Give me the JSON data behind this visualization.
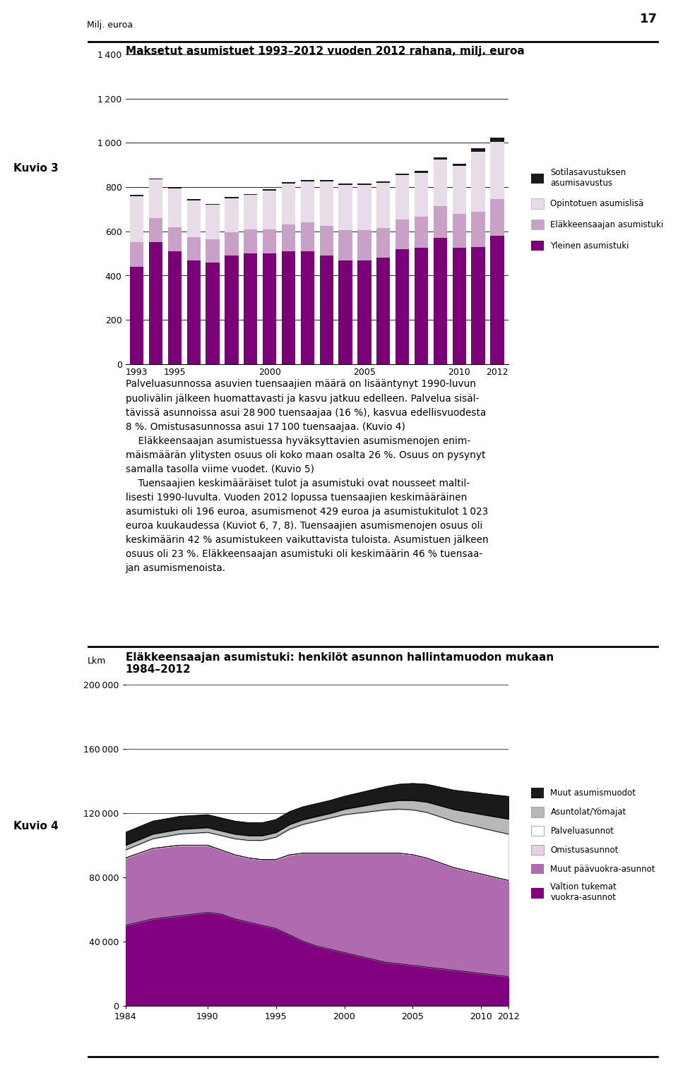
{
  "chart1": {
    "title": "Maksetut asumistuet 1993–2012 vuoden 2012 rahana, milj. euroa",
    "ylabel": "Milj. euroa",
    "years": [
      1993,
      1994,
      1995,
      1996,
      1997,
      1998,
      1999,
      2000,
      2001,
      2002,
      2003,
      2004,
      2005,
      2006,
      2007,
      2008,
      2009,
      2010,
      2011,
      2012
    ],
    "yleinen": [
      440,
      550,
      510,
      470,
      460,
      490,
      500,
      500,
      510,
      510,
      490,
      470,
      470,
      480,
      520,
      525,
      570,
      525,
      530,
      580
    ],
    "elakkeensaajan": [
      110,
      110,
      110,
      105,
      105,
      105,
      110,
      110,
      120,
      130,
      135,
      135,
      135,
      135,
      135,
      140,
      145,
      155,
      160,
      165
    ],
    "opintotuen": [
      210,
      175,
      175,
      165,
      155,
      155,
      155,
      175,
      185,
      185,
      200,
      205,
      205,
      205,
      200,
      200,
      210,
      215,
      270,
      260
    ],
    "sotilasavustuksen": [
      5,
      5,
      5,
      5,
      5,
      5,
      5,
      5,
      7,
      7,
      7,
      7,
      7,
      7,
      7,
      8,
      10,
      10,
      15,
      20
    ],
    "colors": {
      "yleinen": "#7b0077",
      "elakkeensaajan": "#c8a0c8",
      "opintotuen": "#e8dce8",
      "sotilasavustuksen": "#1a1a1a"
    },
    "legend": {
      "sotilasavustuksen": "Sotilasavustuksen\nasumisavustus",
      "opintotuen": "Opintotuen asumislisä",
      "elakkeensaajan": "Eläkkeensaajan asumistuki",
      "yleinen": "Yleinen asumistuki"
    },
    "ylim": [
      0,
      1400
    ],
    "yticks": [
      0,
      200,
      400,
      600,
      800,
      1000,
      1200,
      1400
    ]
  },
  "chart2": {
    "title": "Eläkkeensaajan asumistuki: henkilöt asunnon hallintamuodon mukaan\n1984–2012",
    "ylabel": "Lkm",
    "years": [
      1984,
      1985,
      1986,
      1987,
      1988,
      1989,
      1990,
      1991,
      1992,
      1993,
      1994,
      1995,
      1996,
      1997,
      1998,
      1999,
      2000,
      2001,
      2002,
      2003,
      2004,
      2005,
      2006,
      2007,
      2008,
      2009,
      2010,
      2011,
      2012
    ],
    "valtion_tukemat": [
      50000,
      52000,
      54000,
      55000,
      56000,
      57000,
      58000,
      57000,
      54000,
      52000,
      50000,
      48000,
      44000,
      40000,
      37000,
      35000,
      33000,
      31000,
      29000,
      27000,
      26000,
      25000,
      24000,
      23000,
      22000,
      21000,
      20000,
      19000,
      18000
    ],
    "muut_paavuokra": [
      42000,
      43000,
      44000,
      44000,
      44000,
      43000,
      42000,
      40000,
      40000,
      40000,
      41000,
      43000,
      50000,
      55000,
      58000,
      60000,
      62000,
      64000,
      66000,
      68000,
      69000,
      69000,
      68000,
      66000,
      64000,
      63000,
      62000,
      61000,
      60000
    ],
    "omistusasunnot": [
      0,
      0,
      0,
      0,
      0,
      0,
      0,
      0,
      0,
      0,
      0,
      0,
      0,
      0,
      0,
      0,
      0,
      0,
      0,
      0,
      0,
      0,
      0,
      0,
      0,
      0,
      0,
      0,
      0
    ],
    "palveluasunnot": [
      5000,
      5500,
      6000,
      6500,
      7000,
      7500,
      8000,
      9000,
      10000,
      11000,
      12000,
      14000,
      16000,
      18000,
      20000,
      22000,
      24000,
      25000,
      26000,
      27000,
      27500,
      28000,
      28500,
      28700,
      28800,
      28800,
      28800,
      28800,
      28900
    ],
    "asuntolat": [
      3000,
      3000,
      3000,
      3000,
      3000,
      3000,
      3000,
      3000,
      3000,
      3000,
      3000,
      3000,
      3000,
      3000,
      3000,
      3000,
      3500,
      4000,
      4500,
      5000,
      5500,
      6000,
      6500,
      7000,
      7500,
      8000,
      8500,
      9000,
      9500
    ],
    "muut_asumismuodot": [
      8000,
      8000,
      8000,
      8000,
      8000,
      8000,
      8000,
      8000,
      8000,
      8000,
      8000,
      8000,
      8000,
      8000,
      8000,
      8000,
      8000,
      8500,
      9000,
      9500,
      10000,
      10500,
      11000,
      11500,
      12000,
      12500,
      13000,
      13500,
      14000
    ],
    "colors": {
      "valtion_tukemat": "#800080",
      "muut_paavuokra": "#b06ab0",
      "omistusasunnot": "#e8d0e8",
      "palveluasunnot": "#ffffff",
      "asuntolat": "#b8b8b8",
      "muut_asumismuodot": "#1a1a1a"
    },
    "legend": {
      "muut_asumismuodot": "Muut asumismuodot",
      "asuntolat": "Asuntolat/Yömajat",
      "palveluasunnot": "Palveluasunnot",
      "omistusasunnot": "Omistusasunnot",
      "muut_paavuokra": "Muut päävuokra-asunnot",
      "valtion_tukemat": "Valtion tukemat\nvuokra-asunnot"
    },
    "ylim": [
      0,
      200000
    ],
    "yticks": [
      0,
      40000,
      80000,
      120000,
      160000,
      200000
    ],
    "xticks": [
      1984,
      1990,
      1995,
      2000,
      2005,
      2010,
      2012
    ]
  },
  "page_number": "17",
  "kuvio3_label": "Kuvio 3",
  "kuvio4_label": "Kuvio 4"
}
